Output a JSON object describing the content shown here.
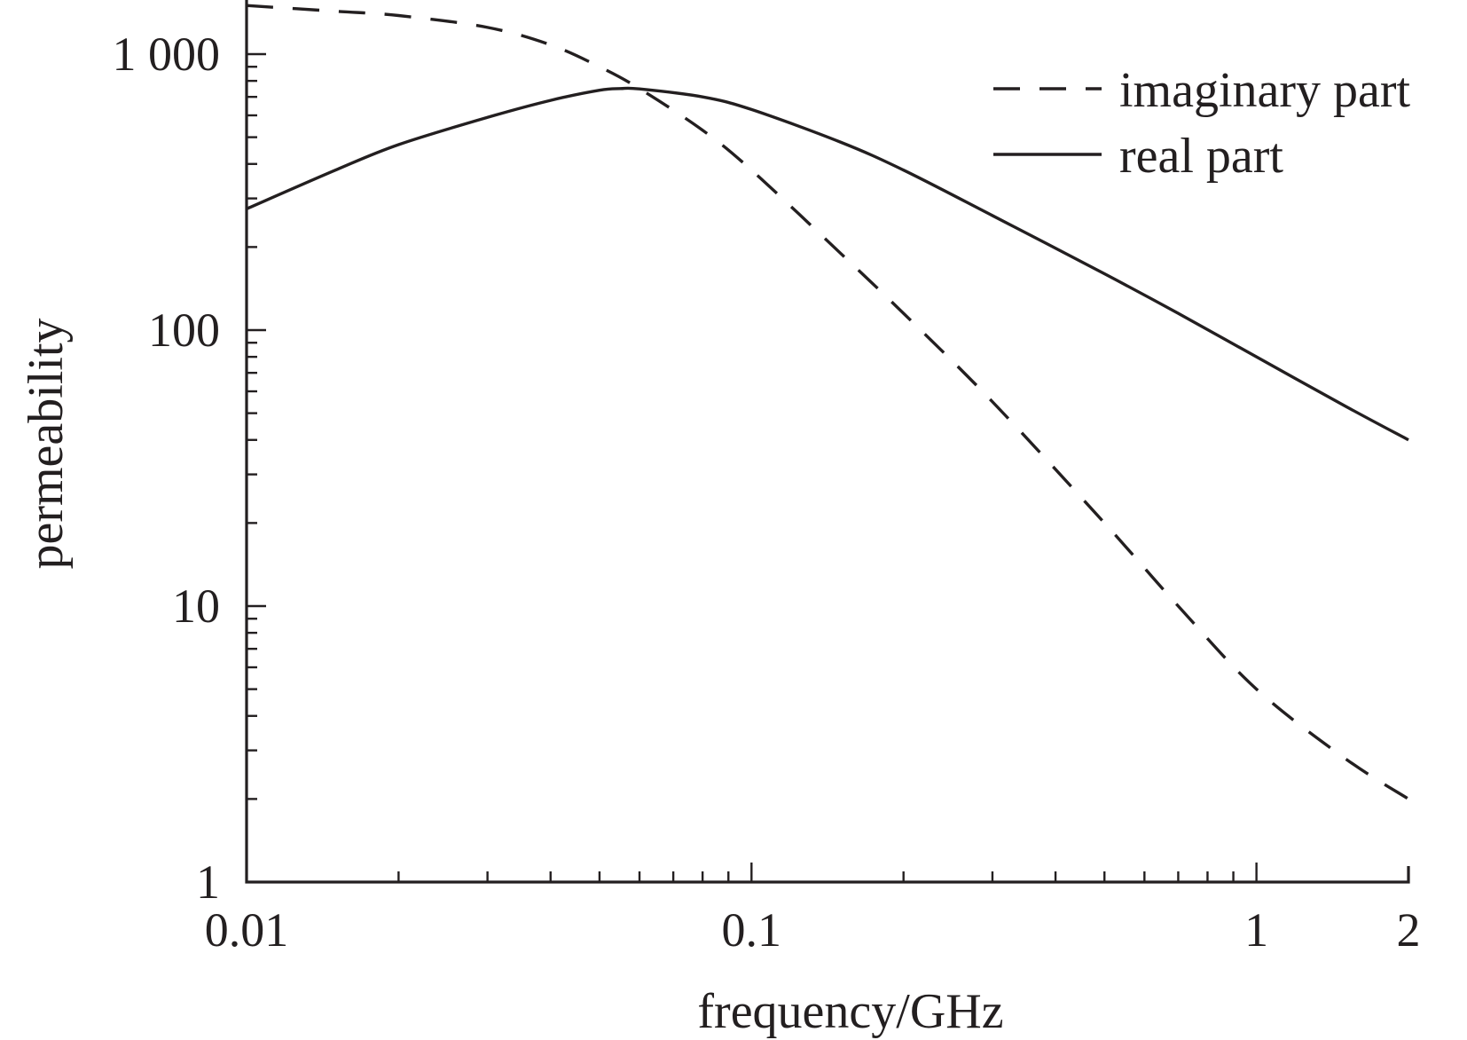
{
  "chart_data": {
    "type": "line",
    "title": "",
    "xlabel": "frequency/GHz",
    "ylabel": "permeability",
    "xscale": "log",
    "yscale": "log",
    "xlim": [
      0.01,
      2
    ],
    "ylim": [
      1,
      1600
    ],
    "x_tick_labels": [
      {
        "value": 0.01,
        "label": "0.01"
      },
      {
        "value": 0.1,
        "label": "0.1"
      },
      {
        "value": 1,
        "label": "1"
      },
      {
        "value": 2,
        "label": "2"
      }
    ],
    "y_tick_labels": [
      {
        "value": 1,
        "label": "1"
      },
      {
        "value": 10,
        "label": "10"
      },
      {
        "value": 100,
        "label": "100"
      },
      {
        "value": 1000,
        "label": "1 000"
      }
    ],
    "grid": false,
    "legend": {
      "position": "top-right"
    },
    "series": [
      {
        "name": "imaginary part",
        "style": "dashed",
        "color": "#231f20",
        "x": [
          0.01,
          0.015,
          0.02,
          0.03,
          0.04,
          0.05,
          0.06,
          0.08,
          0.1,
          0.15,
          0.2,
          0.3,
          0.5,
          0.7,
          1,
          1.5,
          2
        ],
        "y": [
          1500,
          1430,
          1380,
          1250,
          1080,
          900,
          750,
          530,
          380,
          190,
          115,
          55,
          20,
          10,
          5,
          2.8,
          2
        ]
      },
      {
        "name": "real part",
        "style": "solid",
        "color": "#231f20",
        "x": [
          0.01,
          0.015,
          0.02,
          0.03,
          0.04,
          0.05,
          0.055,
          0.06,
          0.08,
          0.1,
          0.15,
          0.2,
          0.3,
          0.5,
          0.7,
          1,
          1.5,
          2
        ],
        "y": [
          275,
          380,
          470,
          590,
          680,
          740,
          750,
          748,
          700,
          630,
          480,
          380,
          260,
          160,
          115,
          80,
          53,
          40
        ]
      }
    ]
  }
}
